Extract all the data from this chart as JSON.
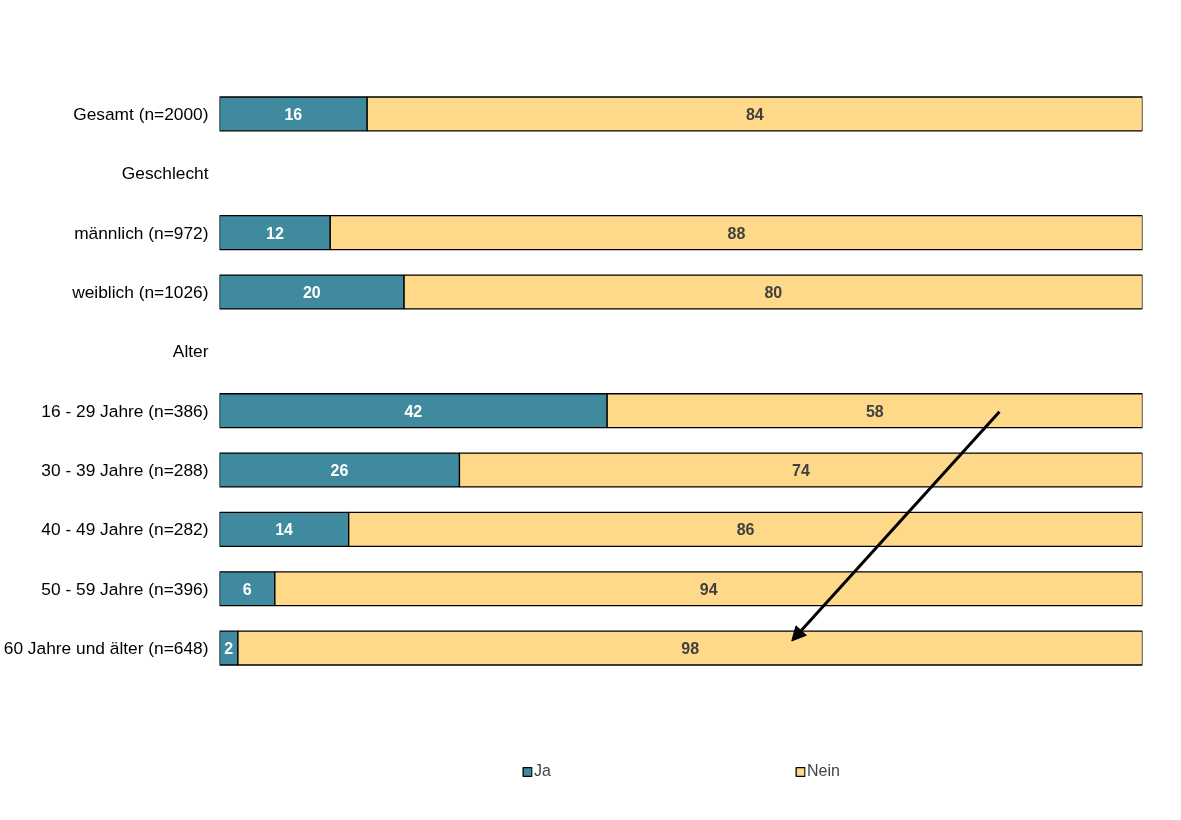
{
  "chart_data": {
    "type": "bar",
    "orientation": "horizontal",
    "stacked": true,
    "data_labels": true,
    "xlim": [
      0,
      100
    ],
    "tick_labels": "y",
    "grid": false,
    "legend": "bottom",
    "categories": [
      "Gesamt (n=2000)",
      "Geschlecht",
      "männlich (n=972)",
      "weiblich (n=1026)",
      "Alter",
      "16 - 29 Jahre (n=386)",
      "30 - 39 Jahre (n=288)",
      "40 - 49 Jahre (n=282)",
      "50 - 59 Jahre (n=396)",
      "60 Jahre und älter (n=648)"
    ],
    "series": [
      {
        "name": "Ja",
        "color": "#3f8a9e",
        "values": [
          16,
          null,
          12,
          20,
          null,
          42,
          26,
          14,
          6,
          2
        ]
      },
      {
        "name": "Nein",
        "color": "#ffd98a",
        "values": [
          84,
          null,
          88,
          80,
          null,
          58,
          74,
          86,
          94,
          98
        ]
      }
    ]
  }
}
